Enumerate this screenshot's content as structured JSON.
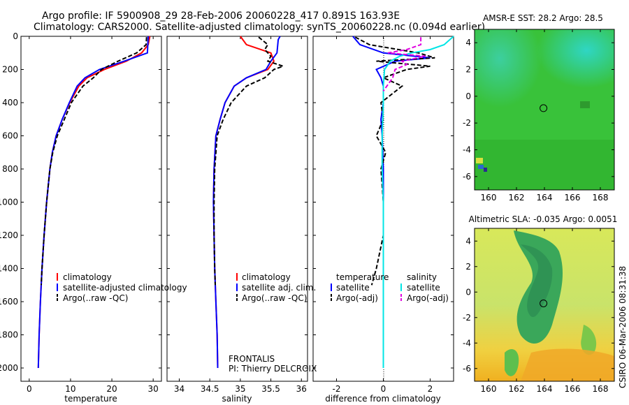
{
  "header": {
    "line1": "Argo profile: IF 5900908_29 28-Feb-2006 20060228_417 0.891S 163.93E",
    "line2": "Climatology: CARS2000. Satellite-adjusted climatology: synTS_20060228.nc (0.094d earlier)"
  },
  "colors": {
    "clim": "#ff0000",
    "sat": "#0000ff",
    "argo": "#000000",
    "sat_diff": "#00e5e5",
    "argo_sal_diff": "#e000e0"
  },
  "credit": "CSIRO 06-Mar-2006 08:31:38",
  "chart_data": [
    {
      "type": "line",
      "xlabel": "temperature",
      "xticks": [
        0,
        10,
        20,
        30
      ],
      "xlim": [
        -2,
        32
      ],
      "yticks": [
        0,
        200,
        400,
        600,
        800,
        1000,
        1200,
        1400,
        1600,
        1800,
        2000
      ],
      "ylim": [
        2080,
        0
      ],
      "legend": [
        "climatology",
        "satellite-adjusted climatology",
        "Argo(..raw -QC)"
      ],
      "series": [
        {
          "name": "climatology",
          "style": "red",
          "depth": [
            0,
            50,
            100,
            150,
            200,
            250,
            300,
            400,
            500,
            600,
            700,
            800,
            1000,
            1200,
            1400,
            1600,
            1800,
            2000
          ],
          "values": [
            29.2,
            28.8,
            27.2,
            23.5,
            18.2,
            14.0,
            12.0,
            9.8,
            8.0,
            6.5,
            5.6,
            5.0,
            4.2,
            3.6,
            3.1,
            2.7,
            2.4,
            2.2
          ]
        },
        {
          "name": "satellite-adjusted climatology",
          "style": "blue",
          "depth": [
            0,
            50,
            100,
            150,
            200,
            250,
            300,
            400,
            500,
            600,
            700,
            800,
            1000,
            1200,
            1400,
            1600,
            1800,
            2000
          ],
          "values": [
            28.8,
            28.7,
            28.6,
            23.0,
            17.0,
            13.5,
            11.6,
            9.7,
            8.0,
            6.5,
            5.6,
            5.0,
            4.2,
            3.6,
            3.1,
            2.7,
            2.4,
            2.2
          ]
        },
        {
          "name": "Argo(..raw -QC)",
          "style": "black-dash",
          "depth": [
            5,
            50,
            100,
            150,
            200,
            250,
            300,
            400,
            500,
            600,
            700,
            800,
            1000,
            1200,
            1400,
            1500
          ],
          "values": [
            28.4,
            28.3,
            26.0,
            21.5,
            17.5,
            15.5,
            13.0,
            10.2,
            8.5,
            6.8,
            5.7,
            5.0,
            4.2,
            3.6,
            3.1,
            2.9
          ]
        }
      ]
    },
    {
      "type": "line",
      "xlabel": "salinity",
      "xticks": [
        34,
        34.5,
        35,
        35.5,
        36
      ],
      "xlim": [
        33.8,
        36.1
      ],
      "yticks": [
        0,
        200,
        400,
        600,
        800,
        1000,
        1200,
        1400,
        1600,
        1800,
        2000
      ],
      "ylim": [
        2080,
        0
      ],
      "legend": [
        "climatology",
        "satellite adj. clim.",
        "Argo(..raw -QC)"
      ],
      "series": [
        {
          "name": "climatology",
          "style": "red",
          "depth": [
            0,
            50,
            100,
            150,
            200,
            250,
            300,
            400,
            500,
            600,
            800,
            1000,
            1200,
            1400,
            1600,
            1800,
            2000
          ],
          "values": [
            35.0,
            35.1,
            35.5,
            35.55,
            35.45,
            35.1,
            34.9,
            34.75,
            34.67,
            34.6,
            34.57,
            34.56,
            34.57,
            34.58,
            34.6,
            34.62,
            34.63
          ]
        },
        {
          "name": "satellite adj. clim.",
          "style": "blue",
          "depth": [
            0,
            20,
            100,
            150,
            200,
            250,
            300,
            400,
            500,
            600,
            800,
            1000,
            1200,
            1400,
            1600,
            1800,
            2000
          ],
          "values": [
            35.65,
            35.62,
            35.6,
            35.5,
            35.42,
            35.1,
            34.9,
            34.75,
            34.67,
            34.6,
            34.57,
            34.56,
            34.57,
            34.58,
            34.6,
            34.62,
            34.63
          ]
        },
        {
          "name": "Argo(..raw -QC)",
          "style": "black-dash",
          "depth": [
            5,
            50,
            80,
            120,
            150,
            180,
            200,
            250,
            300,
            400,
            500,
            600,
            800,
            1000,
            1200,
            1400,
            1500
          ],
          "values": [
            35.3,
            35.45,
            35.4,
            35.5,
            35.45,
            35.7,
            35.55,
            35.4,
            35.1,
            34.85,
            34.72,
            34.62,
            34.58,
            34.57,
            34.57,
            34.58,
            34.59
          ]
        }
      ]
    },
    {
      "type": "line",
      "xlabel": "difference from climatology",
      "xticks": [
        -2,
        0,
        2
      ],
      "xlim": [
        -3,
        3
      ],
      "yticks": [
        0,
        200,
        400,
        600,
        800,
        1000,
        1200,
        1400,
        1600,
        1800,
        2000
      ],
      "ylim": [
        2080,
        0
      ],
      "legend_groups": [
        {
          "title": "temperature",
          "items": [
            "satellite",
            "Argo(-adj)"
          ]
        },
        {
          "title": "salinity",
          "items": [
            "satellite",
            "Argo(-adj)"
          ]
        }
      ],
      "series": [
        {
          "name": "temperature satellite",
          "style": "blue",
          "depth": [
            0,
            50,
            100,
            130,
            150,
            200,
            250,
            300,
            400,
            500,
            600,
            800,
            1000,
            1200,
            1400,
            1600,
            1800,
            2000
          ],
          "values": [
            -1.3,
            -1.0,
            0.0,
            2.0,
            0.5,
            -0.3,
            -0.1,
            0.0,
            0.0,
            -0.1,
            -0.05,
            0.0,
            0.0,
            0.0,
            0.0,
            0.0,
            0.0,
            0.0
          ]
        },
        {
          "name": "temperature Argo(-adj)",
          "style": "black-dash",
          "depth": [
            5,
            50,
            100,
            130,
            150,
            180,
            200,
            250,
            300,
            400,
            500,
            600,
            700,
            800,
            1000,
            1200,
            1400,
            1500
          ],
          "values": [
            -1.2,
            -0.6,
            1.5,
            2.2,
            -0.3,
            2.0,
            1.0,
            0.0,
            0.8,
            -0.1,
            0.0,
            -0.3,
            0.1,
            -0.1,
            0.0,
            0.0,
            -0.3,
            -0.5
          ]
        },
        {
          "name": "salinity satellite",
          "style": "cyan",
          "depth": [
            0,
            50,
            80,
            100,
            120,
            150,
            200,
            300,
            400,
            600,
            800,
            1000,
            1400,
            1800,
            2000
          ],
          "values": [
            3.0,
            2.6,
            2.0,
            1.2,
            0.7,
            0.3,
            0.05,
            0.0,
            0.0,
            -0.05,
            -0.05,
            0.0,
            0.0,
            0.0,
            0.0
          ]
        },
        {
          "name": "salinity Argo(-adj)",
          "style": "magenta-dash",
          "depth": [
            5,
            50,
            80,
            100,
            120,
            150,
            170,
            200,
            250,
            300,
            330
          ],
          "values": [
            1.6,
            1.6,
            1.0,
            0.2,
            1.8,
            0.8,
            1.0,
            0.5,
            0.4,
            0.15,
            0.0
          ]
        }
      ]
    },
    {
      "type": "heatmap",
      "title": "AMSR-E SST: 28.2 Argo: 28.5",
      "xticks": [
        160,
        162,
        164,
        166,
        168
      ],
      "xlim": [
        159.0,
        169.0
      ],
      "yticks": [
        4,
        2,
        0,
        -2,
        -4,
        -6
      ],
      "ylim": [
        -7,
        5
      ],
      "marker": {
        "lon": 163.93,
        "lat": -0.891
      }
    },
    {
      "type": "heatmap",
      "title": "Altimetric SLA: -0.035 Argo: 0.0051",
      "xticks": [
        160,
        162,
        164,
        166,
        168
      ],
      "xlim": [
        159.0,
        169.0
      ],
      "yticks": [
        4,
        2,
        0,
        -2,
        -4,
        -6
      ],
      "ylim": [
        -7,
        5
      ],
      "marker": {
        "lon": 163.93,
        "lat": -0.891
      }
    }
  ]
}
